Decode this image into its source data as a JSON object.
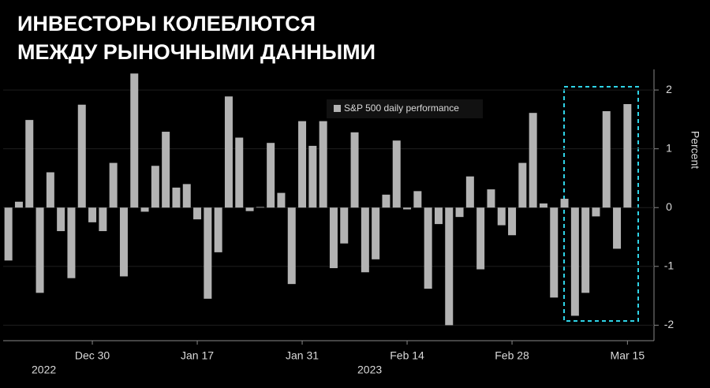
{
  "chart_data": {
    "type": "bar",
    "title_lines": [
      "ИНВЕСТОРЫ КОЛЕБЛЮТСЯ",
      "МЕЖДУ РЫНОЧНЫМИ ДАННЫМИ"
    ],
    "series": [
      {
        "name": "S&P 500 daily performance",
        "color": "#b3b3b3",
        "values": [
          -0.9,
          0.1,
          1.49,
          -1.45,
          0.6,
          -0.4,
          -1.2,
          1.75,
          -0.25,
          -0.4,
          0.76,
          -1.17,
          2.28,
          -0.07,
          0.71,
          1.29,
          0.34,
          0.4,
          -0.2,
          -1.55,
          -0.76,
          1.89,
          1.19,
          -0.06,
          0.01,
          1.1,
          0.25,
          -1.3,
          1.47,
          1.05,
          1.47,
          -1.03,
          -0.61,
          1.28,
          -1.1,
          -0.88,
          0.22,
          1.14,
          -0.03,
          0.28,
          -1.38,
          -0.28,
          -2.0,
          -0.16,
          0.53,
          -1.05,
          0.31,
          -0.3,
          -0.47,
          0.76,
          1.61,
          0.07,
          -1.53,
          0.15,
          -1.84,
          -1.45,
          -0.15,
          1.64,
          -0.7,
          1.76
        ]
      }
    ],
    "categories": [
      null,
      null,
      null,
      null,
      null,
      null,
      null,
      null,
      "Dec 30",
      null,
      null,
      null,
      null,
      null,
      null,
      null,
      null,
      null,
      "Jan 17",
      null,
      null,
      null,
      null,
      null,
      null,
      null,
      null,
      null,
      "Jan 31",
      null,
      null,
      null,
      null,
      null,
      null,
      null,
      null,
      null,
      "Feb 14",
      null,
      null,
      null,
      null,
      null,
      null,
      null,
      null,
      null,
      "Feb 28",
      null,
      null,
      null,
      null,
      null,
      null,
      null,
      null,
      null,
      null,
      "Mar 15"
    ],
    "year_labels": [
      "2022",
      "2023"
    ],
    "ylabel": "Percent",
    "ylim": [
      -2.25,
      2.35
    ],
    "yticks": [
      -2,
      -1,
      0,
      1,
      2
    ]
  }
}
